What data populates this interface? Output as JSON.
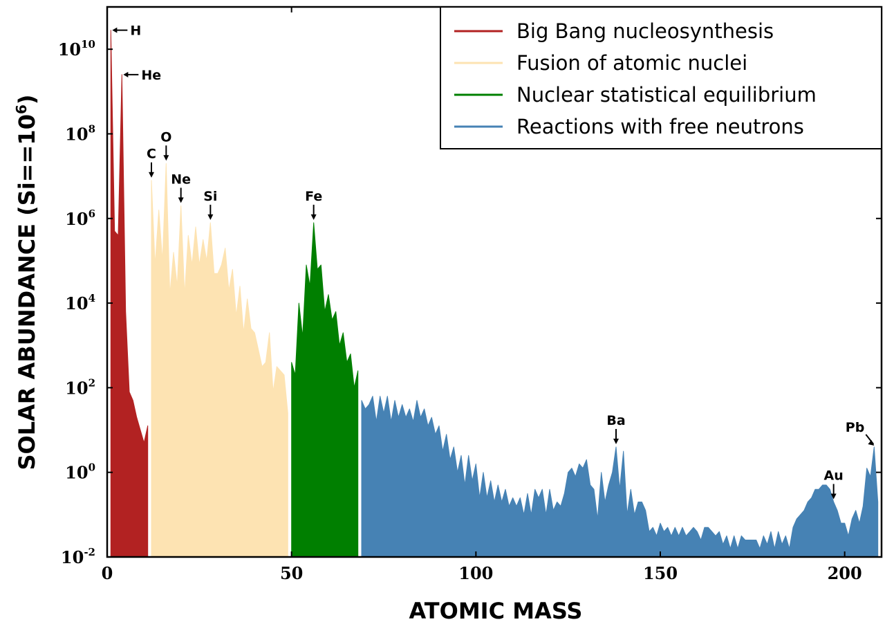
{
  "chart_data": {
    "type": "area",
    "xlabel": "ATOMIC MASS",
    "ylabel_main": "SOLAR ABUNDANCE (Si",
    "ylabel_mid": "==10",
    "ylabel_sup": "6",
    "ylabel_end": ")",
    "xlim": [
      0,
      210
    ],
    "ylim_log10": [
      -2,
      11
    ],
    "x_ticks": [
      0,
      50,
      100,
      150,
      200
    ],
    "y_ticks": [
      {
        "base": "10",
        "exp": "10",
        "log": 10
      },
      {
        "base": "10",
        "exp": "8",
        "log": 8
      },
      {
        "base": "10",
        "exp": "6",
        "log": 6
      },
      {
        "base": "10",
        "exp": "4",
        "log": 4
      },
      {
        "base": "10",
        "exp": "2",
        "log": 2
      },
      {
        "base": "10",
        "exp": "0",
        "log": 0
      },
      {
        "base": "10",
        "exp": "-2",
        "log": -2
      }
    ],
    "legend_position": "top-right",
    "series": [
      {
        "name": "Big Bang nucleosynthesis",
        "color": "#b22222",
        "points": [
          [
            1.0,
            10.45
          ],
          [
            2.0,
            5.7
          ],
          [
            3.0,
            5.6
          ],
          [
            4.0,
            9.4
          ],
          [
            5.0,
            3.8
          ],
          [
            6.0,
            1.9
          ],
          [
            7.0,
            1.7
          ],
          [
            8.0,
            1.3
          ],
          [
            9.0,
            1.0
          ],
          [
            10.0,
            0.7
          ],
          [
            11.0,
            1.1
          ]
        ]
      },
      {
        "name": "Fusion of atomic nuclei",
        "color": "#fde3b2",
        "points": [
          [
            12,
            6.9
          ],
          [
            13,
            4.9
          ],
          [
            14,
            6.2
          ],
          [
            15,
            5.0
          ],
          [
            16,
            7.3
          ],
          [
            17,
            4.2
          ],
          [
            18,
            5.2
          ],
          [
            19,
            4.4
          ],
          [
            20,
            6.3
          ],
          [
            21,
            4.2
          ],
          [
            22,
            5.6
          ],
          [
            23,
            4.9
          ],
          [
            24,
            5.8
          ],
          [
            25,
            4.9
          ],
          [
            26,
            5.5
          ],
          [
            27,
            5.0
          ],
          [
            28,
            5.9
          ],
          [
            29,
            4.7
          ],
          [
            30,
            4.7
          ],
          [
            31,
            4.9
          ],
          [
            32,
            5.3
          ],
          [
            33,
            4.3
          ],
          [
            34,
            4.8
          ],
          [
            35,
            3.7
          ],
          [
            36,
            4.4
          ],
          [
            37,
            3.3
          ],
          [
            38,
            4.1
          ],
          [
            39,
            3.4
          ],
          [
            40,
            3.3
          ],
          [
            41,
            2.9
          ],
          [
            42,
            2.5
          ],
          [
            43,
            2.6
          ],
          [
            44,
            3.3
          ],
          [
            45,
            1.9
          ],
          [
            46,
            2.5
          ],
          [
            47,
            2.4
          ],
          [
            48,
            2.3
          ],
          [
            49,
            1.4
          ]
        ]
      },
      {
        "name": "Nuclear statistical equilibrium",
        "color": "#007f00",
        "points": [
          [
            50,
            2.6
          ],
          [
            51,
            2.3
          ],
          [
            52,
            4.0
          ],
          [
            53,
            3.2
          ],
          [
            54,
            4.9
          ],
          [
            55,
            4.4
          ],
          [
            56,
            5.9
          ],
          [
            57,
            4.8
          ],
          [
            58,
            4.9
          ],
          [
            59,
            3.8
          ],
          [
            60,
            4.2
          ],
          [
            61,
            3.6
          ],
          [
            62,
            3.8
          ],
          [
            63,
            3.0
          ],
          [
            64,
            3.3
          ],
          [
            65,
            2.6
          ],
          [
            66,
            2.8
          ],
          [
            67,
            2.0
          ],
          [
            68,
            2.4
          ]
        ]
      },
      {
        "name": "Reactions with free neutrons",
        "color": "#4682b4",
        "points": [
          [
            69,
            1.7
          ],
          [
            70,
            1.5
          ],
          [
            71,
            1.6
          ],
          [
            72,
            1.8
          ],
          [
            73,
            1.2
          ],
          [
            74,
            1.8
          ],
          [
            75,
            1.4
          ],
          [
            76,
            1.8
          ],
          [
            77,
            1.2
          ],
          [
            78,
            1.7
          ],
          [
            79,
            1.3
          ],
          [
            80,
            1.6
          ],
          [
            81,
            1.3
          ],
          [
            82,
            1.5
          ],
          [
            83,
            1.2
          ],
          [
            84,
            1.7
          ],
          [
            85,
            1.3
          ],
          [
            86,
            1.5
          ],
          [
            87,
            1.1
          ],
          [
            88,
            1.3
          ],
          [
            89,
            0.9
          ],
          [
            90,
            1.1
          ],
          [
            91,
            0.5
          ],
          [
            92,
            0.9
          ],
          [
            93,
            0.3
          ],
          [
            94,
            0.6
          ],
          [
            95,
            0.0
          ],
          [
            96,
            0.4
          ],
          [
            97,
            -0.3
          ],
          [
            98,
            0.4
          ],
          [
            99,
            -0.2
          ],
          [
            100,
            0.2
          ],
          [
            101,
            -0.6
          ],
          [
            102,
            0.0
          ],
          [
            103,
            -0.6
          ],
          [
            104,
            -0.2
          ],
          [
            105,
            -0.7
          ],
          [
            106,
            -0.3
          ],
          [
            107,
            -0.7
          ],
          [
            108,
            -0.4
          ],
          [
            109,
            -0.8
          ],
          [
            110,
            -0.6
          ],
          [
            111,
            -0.8
          ],
          [
            112,
            -0.6
          ],
          [
            113,
            -1.0
          ],
          [
            114,
            -0.5
          ],
          [
            115,
            -1.0
          ],
          [
            116,
            -0.4
          ],
          [
            117,
            -0.6
          ],
          [
            118,
            -0.4
          ],
          [
            119,
            -1.0
          ],
          [
            120,
            -0.4
          ],
          [
            121,
            -0.9
          ],
          [
            122,
            -0.7
          ],
          [
            123,
            -0.8
          ],
          [
            124,
            -0.5
          ],
          [
            125,
            0.0
          ],
          [
            126,
            0.1
          ],
          [
            127,
            -0.1
          ],
          [
            128,
            0.2
          ],
          [
            129,
            0.1
          ],
          [
            130,
            0.3
          ],
          [
            131,
            -0.3
          ],
          [
            132,
            -0.4
          ],
          [
            133,
            -1.1
          ],
          [
            134,
            0.0
          ],
          [
            135,
            -0.7
          ],
          [
            136,
            -0.3
          ],
          [
            137,
            0.0
          ],
          [
            138,
            0.6
          ],
          [
            139,
            -0.4
          ],
          [
            140,
            0.5
          ],
          [
            141,
            -1.0
          ],
          [
            142,
            -0.4
          ],
          [
            143,
            -1.0
          ],
          [
            144,
            -0.7
          ],
          [
            145,
            -0.7
          ],
          [
            146,
            -0.9
          ],
          [
            147,
            -1.4
          ],
          [
            148,
            -1.3
          ],
          [
            149,
            -1.5
          ],
          [
            150,
            -1.2
          ],
          [
            151,
            -1.4
          ],
          [
            152,
            -1.3
          ],
          [
            153,
            -1.5
          ],
          [
            154,
            -1.3
          ],
          [
            155,
            -1.5
          ],
          [
            156,
            -1.3
          ],
          [
            157,
            -1.5
          ],
          [
            158,
            -1.4
          ],
          [
            159,
            -1.3
          ],
          [
            160,
            -1.4
          ],
          [
            161,
            -1.6
          ],
          [
            162,
            -1.3
          ],
          [
            163,
            -1.3
          ],
          [
            164,
            -1.4
          ],
          [
            165,
            -1.5
          ],
          [
            166,
            -1.4
          ],
          [
            167,
            -1.7
          ],
          [
            168,
            -1.5
          ],
          [
            169,
            -1.8
          ],
          [
            170,
            -1.5
          ],
          [
            171,
            -1.8
          ],
          [
            172,
            -1.5
          ],
          [
            173,
            -1.6
          ],
          [
            174,
            -1.6
          ],
          [
            175,
            -1.6
          ],
          [
            176,
            -1.6
          ],
          [
            177,
            -1.8
          ],
          [
            178,
            -1.5
          ],
          [
            179,
            -1.7
          ],
          [
            180,
            -1.4
          ],
          [
            181,
            -1.8
          ],
          [
            182,
            -1.4
          ],
          [
            183,
            -1.7
          ],
          [
            184,
            -1.5
          ],
          [
            185,
            -1.8
          ],
          [
            186,
            -1.3
          ],
          [
            187,
            -1.1
          ],
          [
            188,
            -1.0
          ],
          [
            189,
            -0.9
          ],
          [
            190,
            -0.7
          ],
          [
            191,
            -0.6
          ],
          [
            192,
            -0.4
          ],
          [
            193,
            -0.4
          ],
          [
            194,
            -0.3
          ],
          [
            195,
            -0.3
          ],
          [
            196,
            -0.4
          ],
          [
            197,
            -0.7
          ],
          [
            198,
            -0.9
          ],
          [
            199,
            -1.2
          ],
          [
            200,
            -1.2
          ],
          [
            201,
            -1.5
          ],
          [
            202,
            -1.1
          ],
          [
            203,
            -0.9
          ],
          [
            204,
            -1.2
          ],
          [
            205,
            -0.8
          ],
          [
            206,
            0.1
          ],
          [
            207,
            -0.1
          ],
          [
            208,
            0.6
          ],
          [
            209,
            -0.7
          ]
        ]
      }
    ],
    "annotations": [
      {
        "label": "H",
        "x": 1,
        "y_log": 10.45,
        "arrow": "left"
      },
      {
        "label": "He",
        "x": 4,
        "y_log": 9.4,
        "arrow": "left"
      },
      {
        "label": "C",
        "x": 12,
        "y_log": 6.9,
        "arrow": "down"
      },
      {
        "label": "O",
        "x": 16,
        "y_log": 7.3,
        "arrow": "down"
      },
      {
        "label": "Ne",
        "x": 20,
        "y_log": 6.3,
        "arrow": "down"
      },
      {
        "label": "Si",
        "x": 28,
        "y_log": 5.9,
        "arrow": "down"
      },
      {
        "label": "Fe",
        "x": 56,
        "y_log": 5.9,
        "arrow": "down"
      },
      {
        "label": "Ba",
        "x": 138,
        "y_log": 0.6,
        "arrow": "down"
      },
      {
        "label": "Au",
        "x": 197,
        "y_log": -0.7,
        "arrow": "down"
      },
      {
        "label": "Pb",
        "x": 208,
        "y_log": 0.6,
        "arrow": "diag"
      }
    ]
  }
}
